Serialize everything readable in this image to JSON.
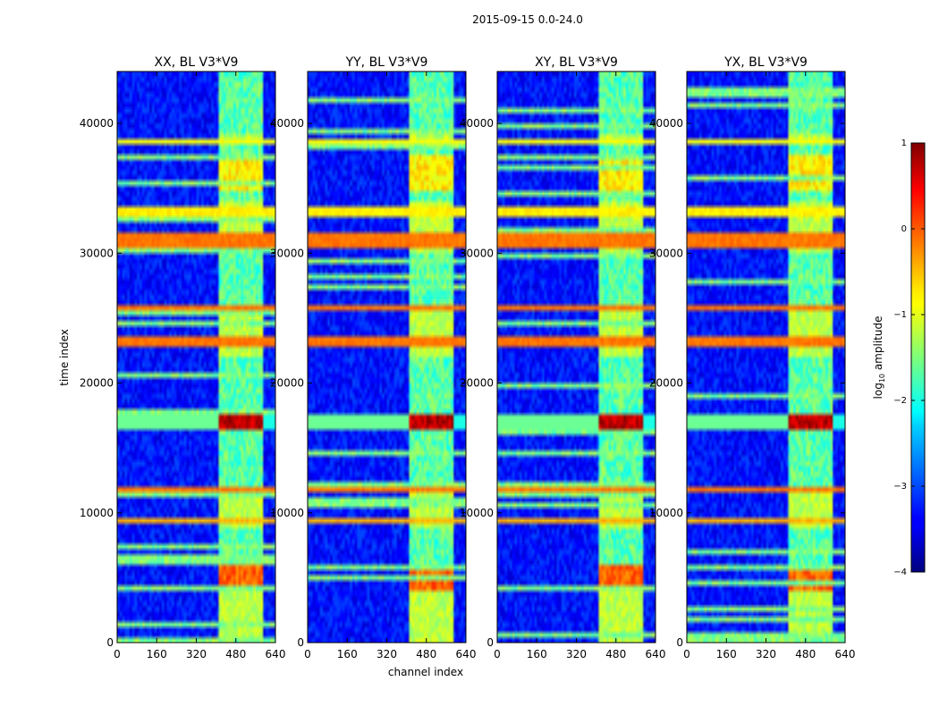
{
  "chart_data": {
    "type": "heatmap",
    "suptitle": "2015-09-15 0.0-24.0",
    "xlabel": "channel index",
    "ylabel": "time index",
    "xlim": [
      0,
      640
    ],
    "ylim": [
      0,
      44000
    ],
    "xticks": [
      0,
      160,
      320,
      480,
      640
    ],
    "yticks": [
      0,
      10000,
      20000,
      30000,
      40000
    ],
    "colormap": "jet",
    "colorbar": {
      "label": "log10 amplitude",
      "label_main": "log",
      "label_sub": "10",
      "label_rest": " amplitude",
      "range": [
        -4,
        1
      ],
      "ticks": [
        1,
        0,
        -1,
        -2,
        -3,
        -4
      ],
      "tick_labels": [
        "1",
        "0",
        "−1",
        "−2",
        "−3",
        "−4"
      ]
    },
    "panels": [
      {
        "title": "XX, BL V3*V9",
        "polarization": "XX"
      },
      {
        "title": "YY, BL V3*V9",
        "polarization": "YY"
      },
      {
        "title": "XY, BL V3*V9",
        "polarization": "XY"
      },
      {
        "title": "YX, BL V3*V9",
        "polarization": "YX"
      }
    ],
    "background_level": -3.3,
    "signal_band_channels": [
      410,
      590
    ],
    "signal_subbands": [
      [
        410,
        455
      ],
      [
        460,
        500
      ],
      [
        505,
        545
      ],
      [
        550,
        590
      ]
    ],
    "signal_band_mask": [
      [
        0,
        5000
      ],
      [
        9000,
        12000
      ],
      [
        22000,
        26000
      ],
      [
        30000,
        34000
      ],
      [
        38500,
        39000
      ]
    ],
    "strong_rfi_events": [
      {
        "time_range": [
          16500,
          17500
        ],
        "level": 1.0,
        "horizontal_leak": true
      },
      {
        "time_range": [
          4200,
          6000
        ],
        "level": 0.2,
        "horizontal_leak": false
      },
      {
        "time_range": [
          35000,
          37500
        ],
        "level": -0.5,
        "horizontal_leak": false
      }
    ],
    "horizontal_flag_lines": [
      {
        "time_range": [
          32800,
          33400
        ],
        "level": -0.8
      },
      {
        "time_range": [
          30600,
          31400
        ],
        "level": -0.2
      },
      {
        "time_range": [
          38400,
          38900
        ],
        "level": -0.9
      },
      {
        "time_range": [
          25600,
          25900
        ],
        "level": -0.2
      },
      {
        "time_range": [
          22900,
          23400
        ],
        "level": -0.2
      },
      {
        "time_range": [
          11500,
          11800
        ],
        "level": -0.2
      },
      {
        "time_range": [
          9200,
          9600
        ],
        "level": -0.5
      }
    ]
  }
}
